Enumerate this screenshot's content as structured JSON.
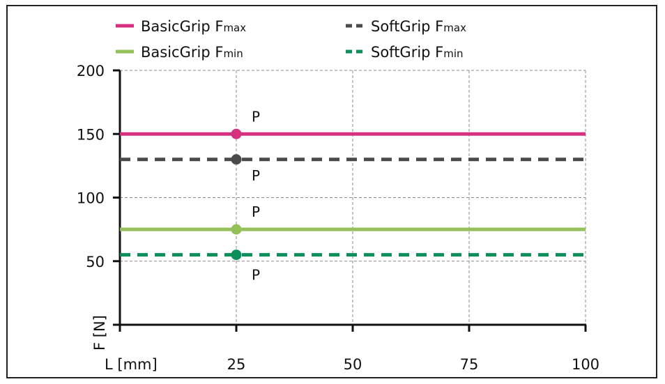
{
  "chart_data": {
    "type": "line",
    "x": [
      0,
      25,
      50,
      75,
      100
    ],
    "xlim": [
      0,
      100
    ],
    "ylim": [
      0,
      200
    ],
    "x_ticks": [
      25,
      50,
      75,
      100
    ],
    "y_ticks": [
      50,
      100,
      150,
      200
    ],
    "xlabel": "L [mm]",
    "ylabel": "F [N]",
    "grid": true,
    "legend_position": "top",
    "series": [
      {
        "name": "BasicGrip Fmax",
        "name_main": "BasicGrip F",
        "name_sub": "max",
        "value": 150,
        "style": "solid",
        "color": "#d6307e",
        "point_x": 25,
        "point_label": "P"
      },
      {
        "name": "SoftGrip Fmax",
        "name_main": "SoftGrip F",
        "name_sub": "max",
        "value": 130,
        "style": "dashed",
        "color": "#4a4a4a",
        "point_x": 25,
        "point_label": "P"
      },
      {
        "name": "BasicGrip Fmin",
        "name_main": "BasicGrip F",
        "name_sub": "min",
        "value": 75,
        "style": "solid",
        "color": "#95c15a",
        "point_x": 25,
        "point_label": "P"
      },
      {
        "name": "SoftGrip Fmin",
        "name_main": "SoftGrip F",
        "name_sub": "min",
        "value": 55,
        "style": "dashed",
        "color": "#0c8f5b",
        "point_x": 25,
        "point_label": "P"
      }
    ]
  }
}
